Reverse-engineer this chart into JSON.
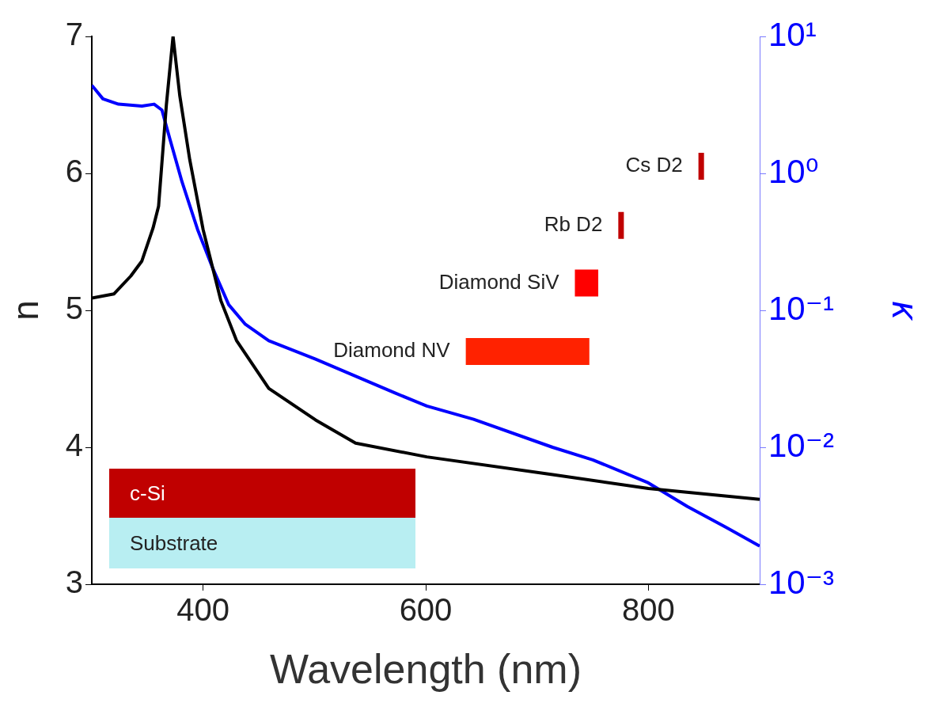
{
  "chart_data": {
    "type": "line",
    "xlabel": "Wavelength (nm)",
    "ylabel": "n",
    "y2label": "κ",
    "xlim": [
      300,
      900
    ],
    "xticks": [
      400,
      600,
      800
    ],
    "ylim": [
      3,
      7
    ],
    "yticks": [
      3,
      4,
      5,
      6,
      7
    ],
    "y2lim": [
      0.001,
      10
    ],
    "y2ticks": [
      {
        "value": 0.001,
        "label": "10⁻³"
      },
      {
        "value": 0.01,
        "label": "10⁻²"
      },
      {
        "value": 0.1,
        "label": "10⁻¹"
      },
      {
        "value": 1,
        "label": "10⁰"
      },
      {
        "value": 10,
        "label": "10¹"
      }
    ],
    "log": "y2",
    "grid": false,
    "series": [
      {
        "color": "#000000",
        "x": [
          300,
          320,
          335,
          345,
          355,
          360,
          367,
          373,
          379,
          388,
          400,
          416,
          430,
          459,
          501,
          537,
          601,
          714,
          800,
          900
        ],
        "values": [
          5.09,
          5.12,
          5.25,
          5.36,
          5.6,
          5.76,
          6.5,
          7.0,
          6.57,
          6.1,
          5.59,
          5.07,
          4.78,
          4.43,
          4.2,
          4.03,
          3.93,
          3.8,
          3.7,
          3.62
        ]
      },
      {
        "color": "#0000ff",
        "axis": "y2",
        "x": [
          300,
          310,
          324,
          345,
          356,
          363,
          370,
          381,
          395,
          409,
          423,
          438,
          459,
          501,
          572,
          601,
          643,
          714,
          750,
          800,
          835,
          870,
          900
        ],
        "values": [
          4.4,
          3.5,
          3.2,
          3.1,
          3.2,
          2.9,
          1.8,
          0.87,
          0.39,
          0.2,
          0.11,
          0.079,
          0.06,
          0.044,
          0.025,
          0.02,
          0.016,
          0.01,
          0.0081,
          0.0055,
          0.0037,
          0.0026,
          0.0019
        ]
      }
    ],
    "bands": [
      {
        "axis": "x",
        "from": 845,
        "to": 850,
        "label": "Cs D2",
        "color": "#c00000"
      },
      {
        "axis": "x",
        "from": 773,
        "to": 778,
        "label": "Rb D2",
        "color": "#c00000"
      },
      {
        "axis": "x",
        "from": 734,
        "to": 755,
        "label": "Diamond SiV",
        "color": "#ff0000"
      },
      {
        "axis": "x",
        "from": 636,
        "to": 747,
        "label": "Diamond NV",
        "color": "#ff2200"
      }
    ],
    "annotations": [
      "c-Si",
      "Substrate"
    ]
  }
}
